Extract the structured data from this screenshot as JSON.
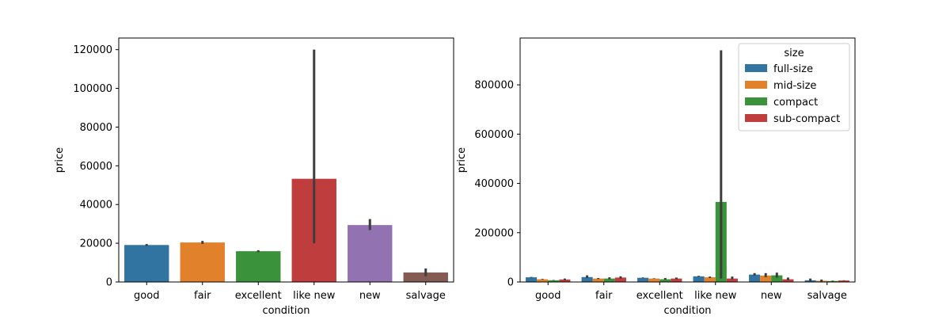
{
  "chart_data": [
    {
      "type": "bar",
      "categories": [
        "good",
        "fair",
        "excellent",
        "like new",
        "new",
        "salvage"
      ],
      "values": [
        19100,
        20400,
        15900,
        53300,
        29400,
        4900
      ],
      "error_bars": [
        [
          18600,
          19600
        ],
        [
          19700,
          21200
        ],
        [
          15400,
          16400
        ],
        [
          20000,
          120000
        ],
        [
          26800,
          32500
        ],
        [
          3000,
          7000
        ]
      ],
      "colors": [
        "#3274a1",
        "#e1812c",
        "#3a923a",
        "#c03d3e",
        "#9372b2",
        "#845b53"
      ],
      "xlabel": "condition",
      "ylabel": "price",
      "ylim": [
        0,
        126000
      ],
      "yticks": [
        0,
        20000,
        40000,
        60000,
        80000,
        100000,
        120000
      ],
      "ytick_labels": [
        "0",
        "20000",
        "40000",
        "60000",
        "80000",
        "100000",
        "120000"
      ],
      "grid": false
    },
    {
      "type": "bar",
      "categories": [
        "good",
        "fair",
        "excellent",
        "like new",
        "new",
        "salvage"
      ],
      "series": [
        {
          "name": "full-size",
          "color": "#3274a1",
          "values": [
            19000,
            20000,
            17000,
            23000,
            30000,
            7000
          ],
          "error_bars": [
            [
              17500,
              20500
            ],
            [
              16000,
              27000
            ],
            [
              16000,
              18500
            ],
            [
              21000,
              25000
            ],
            [
              26000,
              36000
            ],
            [
              3000,
              14000
            ]
          ]
        },
        {
          "name": "mid-size",
          "color": "#e1812c",
          "values": [
            11000,
            14000,
            14000,
            19000,
            26000,
            5000
          ],
          "error_bars": [
            [
              9500,
              12500
            ],
            [
              12000,
              16000
            ],
            [
              13000,
              15000
            ],
            [
              16000,
              22000
            ],
            [
              20000,
              36000
            ],
            [
              2000,
              10000
            ]
          ]
        },
        {
          "name": "compact",
          "color": "#3a923a",
          "values": [
            7000,
            14000,
            11000,
            325000,
            27000,
            4000
          ],
          "error_bars": [
            [
              6000,
              8000
            ],
            [
              11000,
              19000
            ],
            [
              9000,
              16000
            ],
            [
              14000,
              940000
            ],
            [
              18000,
              38000
            ],
            [
              2500,
              5500
            ]
          ]
        },
        {
          "name": "sub-compact",
          "color": "#c03d3e",
          "values": [
            10000,
            18000,
            14000,
            14000,
            11000,
            6000
          ],
          "error_bars": [
            [
              7000,
              14000
            ],
            [
              14000,
              23000
            ],
            [
              11000,
              18000
            ],
            [
              11000,
              22000
            ],
            [
              7000,
              18000
            ],
            [
              5000,
              7000
            ]
          ]
        }
      ],
      "xlabel": "condition",
      "ylabel": "price",
      "ylim": [
        0,
        990000
      ],
      "yticks": [
        0,
        200000,
        400000,
        600000,
        800000
      ],
      "ytick_labels": [
        "0",
        "200000",
        "400000",
        "600000",
        "800000"
      ],
      "legend": {
        "title": "size",
        "position": "top-right"
      },
      "grid": false
    }
  ]
}
